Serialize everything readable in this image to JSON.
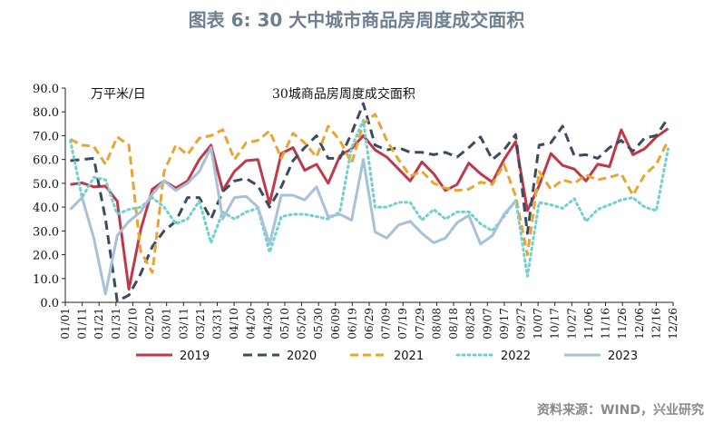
{
  "figure": {
    "title": "图表 6:  30 大中城市商品房周度成交面积",
    "source": "资料来源：WIND，兴业研究"
  },
  "chart_data": {
    "type": "line",
    "title": "30城商品房周度成交面积",
    "ylabel": "万平米/日",
    "ylim": [
      0,
      90
    ],
    "yticks": [
      0,
      10,
      20,
      30,
      40,
      50,
      60,
      70,
      80,
      90
    ],
    "ytick_labels": [
      "0.0",
      "10.0",
      "20.0",
      "30.0",
      "40.0",
      "50.0",
      "60.0",
      "70.0",
      "80.0",
      "90.0"
    ],
    "xticks": [
      "01/01",
      "01/11",
      "01/21",
      "01/31",
      "02/10",
      "02/20",
      "03/01",
      "03/11",
      "03/21",
      "03/31",
      "04/10",
      "04/20",
      "04/30",
      "05/10",
      "05/20",
      "05/30",
      "06/09",
      "06/19",
      "06/29",
      "07/09",
      "07/19",
      "07/29",
      "08/08",
      "08/18",
      "08/28",
      "09/07",
      "09/17",
      "09/27",
      "10/07",
      "10/17",
      "10/27",
      "11/06",
      "11/16",
      "11/26",
      "12/06",
      "12/16",
      "12/26"
    ],
    "x_day_range": [
      1,
      364
    ],
    "legend_position": "bottom",
    "series": [
      {
        "name": "2019",
        "color": "#c0394b",
        "dash": "solid",
        "x": [
          4,
          11,
          18,
          25,
          32,
          39,
          46,
          53,
          60,
          67,
          74,
          81,
          88,
          95,
          102,
          109,
          116,
          123,
          130,
          137,
          144,
          151,
          158,
          165,
          172,
          179,
          186,
          193,
          200,
          207,
          214,
          221,
          228,
          235,
          242,
          249,
          256,
          263,
          270,
          277,
          284,
          291,
          298,
          305,
          312,
          319,
          326,
          333,
          340,
          347,
          354,
          361
        ],
        "values": [
          49.5,
          50.2,
          48.5,
          48.8,
          42.5,
          5.5,
          30.5,
          47.5,
          51,
          48,
          51,
          60,
          66,
          47,
          55,
          59.5,
          60,
          41.5,
          62.5,
          65,
          55.5,
          58,
          50,
          61.5,
          64.5,
          70,
          64,
          61,
          56,
          51,
          59,
          54,
          47,
          49.5,
          58.5,
          54,
          50.5,
          60,
          67.5,
          38.5,
          49,
          62.5,
          57.5,
          56,
          51,
          58,
          57,
          72.5,
          62,
          64.5,
          69.5,
          73
        ]
      },
      {
        "name": "2020",
        "color": "#3c4c60",
        "dash": "10,6",
        "x": [
          4,
          11,
          18,
          25,
          32,
          39,
          46,
          53,
          60,
          67,
          74,
          81,
          88,
          95,
          102,
          109,
          116,
          123,
          130,
          137,
          144,
          151,
          158,
          165,
          172,
          179,
          186,
          193,
          200,
          207,
          214,
          221,
          228,
          235,
          242,
          249,
          256,
          263,
          270,
          277,
          284,
          291,
          298,
          305,
          312,
          319,
          326,
          333,
          340,
          347,
          354,
          361
        ],
        "values": [
          59.5,
          60,
          60.5,
          35,
          0.5,
          3,
          12,
          23.5,
          30,
          34,
          44,
          44,
          35,
          46.5,
          51,
          52,
          49,
          40,
          48.5,
          59.5,
          65,
          70,
          60.5,
          60.5,
          71,
          83.5,
          66,
          64,
          65,
          63,
          63,
          62,
          63,
          61,
          65,
          69.5,
          60,
          64,
          70.5,
          29,
          66,
          67,
          74,
          61.5,
          62,
          60.5,
          65,
          68,
          63.5,
          69,
          70,
          77.5
        ]
      },
      {
        "name": "2021",
        "color": "#e8a530",
        "dash": "9,5",
        "x": [
          4,
          11,
          18,
          25,
          32,
          39,
          46,
          53,
          60,
          67,
          74,
          81,
          88,
          95,
          102,
          109,
          116,
          123,
          130,
          137,
          144,
          151,
          158,
          165,
          172,
          179,
          186,
          193,
          200,
          207,
          214,
          221,
          228,
          235,
          242,
          249,
          256,
          263,
          270,
          277,
          284,
          291,
          298,
          305,
          312,
          319,
          326,
          333,
          340,
          347,
          354,
          361
        ],
        "values": [
          68.5,
          66,
          65.5,
          58,
          69.5,
          66,
          21.5,
          12.5,
          55,
          66,
          62,
          69,
          70,
          72.5,
          60,
          67,
          68,
          72,
          60.5,
          71,
          67,
          61,
          74,
          68,
          58.5,
          75,
          79,
          68,
          60,
          53,
          55,
          50,
          48,
          47,
          47.5,
          50.5,
          49.5,
          58,
          44.5,
          20,
          55,
          47.5,
          51.5,
          50,
          53.5,
          51.5,
          52.5,
          54,
          45,
          53.5,
          58,
          68
        ]
      },
      {
        "name": "2022",
        "color": "#6fd0cf",
        "dash": "2,4",
        "x": [
          4,
          11,
          18,
          25,
          32,
          39,
          46,
          53,
          60,
          67,
          74,
          81,
          88,
          95,
          102,
          109,
          116,
          123,
          130,
          137,
          144,
          151,
          158,
          165,
          172,
          179,
          186,
          193,
          200,
          207,
          214,
          221,
          228,
          235,
          242,
          249,
          256,
          263,
          270,
          277,
          284,
          291,
          298,
          305,
          312,
          319,
          326,
          333,
          340,
          347,
          354,
          361
        ],
        "values": [
          68,
          44,
          52.5,
          51.5,
          37,
          39,
          40,
          44,
          40,
          33,
          35,
          42.5,
          25,
          38,
          35,
          38,
          39.5,
          21,
          36,
          37,
          37,
          36,
          35,
          38,
          65,
          76.5,
          40,
          40,
          42,
          42,
          34.5,
          39,
          35,
          38,
          38,
          33,
          30,
          36,
          43,
          11,
          42,
          41,
          39.5,
          43.5,
          34,
          39,
          41,
          43,
          44,
          40,
          38.5,
          64.5
        ]
      },
      {
        "name": "2023",
        "color": "#a7c1d9",
        "dash": "solid",
        "x": [
          4,
          11,
          18,
          25,
          32,
          39,
          46,
          53,
          60,
          67,
          74,
          81,
          88,
          95,
          102,
          109,
          116,
          123,
          130,
          137,
          144,
          151,
          158,
          165,
          172,
          179,
          186,
          193,
          200,
          207,
          214,
          221,
          228,
          235,
          242,
          249,
          256,
          263,
          270,
          277,
          284,
          291,
          298,
          305,
          312,
          319,
          326,
          333,
          340,
          347,
          354,
          361
        ],
        "values": [
          39,
          44,
          27,
          3.5,
          28,
          34,
          38,
          45.5,
          51,
          47,
          50,
          55,
          65,
          35,
          44,
          44.5,
          40,
          24.5,
          45,
          45,
          43,
          48.5,
          36,
          37,
          34.5,
          60,
          29.5,
          27,
          32.5,
          34,
          29,
          25,
          27,
          33.5,
          36.5,
          24.5,
          28,
          37,
          42.5,
          null,
          null,
          null,
          null,
          null,
          null,
          null,
          null,
          null,
          null,
          null,
          null,
          null
        ]
      }
    ]
  }
}
